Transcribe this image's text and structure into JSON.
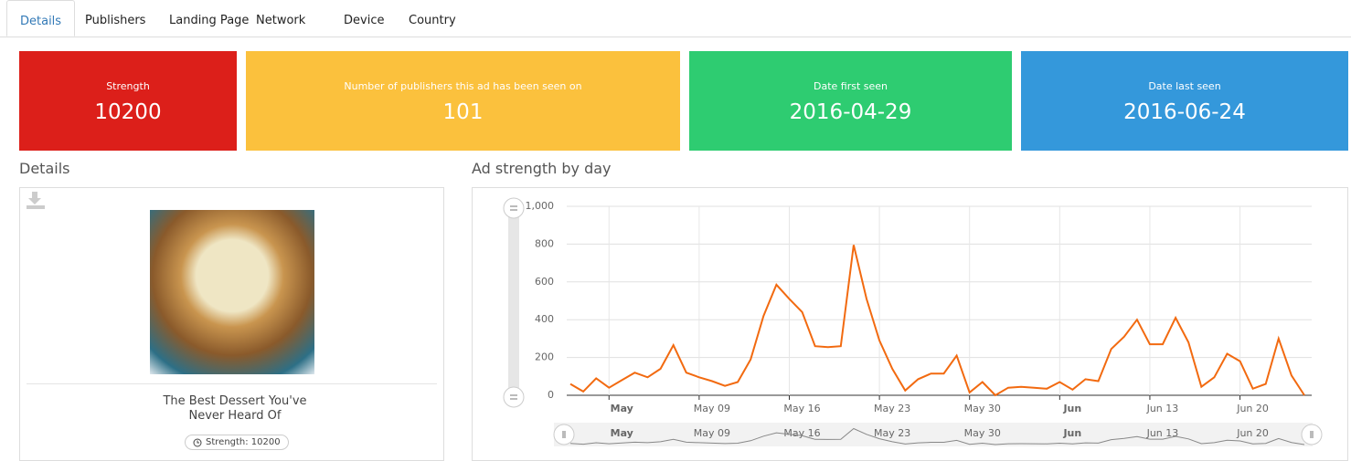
{
  "tabs": [
    "Details",
    "Publishers",
    "Landing Page",
    "Network",
    "Device",
    "Country"
  ],
  "cards": [
    {
      "label": "Strength",
      "value": 10200,
      "color": "#dc1f1a"
    },
    {
      "label": "Number of publishers this ad has been seen on",
      "value": 101,
      "color": "#fbc13d"
    },
    {
      "label": "Date first seen",
      "value": "2016-04-29",
      "color": "#2ecc71"
    },
    {
      "label": "Date last seen",
      "value": "2016-06-24",
      "color": "#3498db"
    }
  ],
  "details": {
    "heading": "Details",
    "ad_title": "The Best Dessert You've Never Heard Of",
    "badge": "Strength: 10200"
  },
  "chart_data": {
    "type": "line",
    "title": "Ad strength by day",
    "color": "#f26a10",
    "x": [
      "Apr 29",
      "Apr 30",
      "May 01",
      "May 02",
      "May 03",
      "May 04",
      "May 05",
      "May 06",
      "May 07",
      "May 08",
      "May 09",
      "May 10",
      "May 11",
      "May 12",
      "May 13",
      "May 14",
      "May 15",
      "May 16",
      "May 17",
      "May 18",
      "May 19",
      "May 20",
      "May 21",
      "May 22",
      "May 23",
      "May 24",
      "May 25",
      "May 26",
      "May 27",
      "May 28",
      "May 29",
      "May 30",
      "May 31",
      "Jun 01",
      "Jun 02",
      "Jun 03",
      "Jun 04",
      "Jun 05",
      "Jun 06",
      "Jun 07",
      "Jun 08",
      "Jun 09",
      "Jun 10",
      "Jun 11",
      "Jun 12",
      "Jun 13",
      "Jun 14",
      "Jun 15",
      "Jun 16",
      "Jun 17",
      "Jun 18",
      "Jun 19",
      "Jun 20",
      "Jun 21",
      "Jun 22",
      "Jun 23",
      "Jun 24",
      "Jun 25"
    ],
    "values": [
      60,
      20,
      90,
      40,
      80,
      120,
      95,
      140,
      265,
      120,
      95,
      75,
      50,
      70,
      190,
      420,
      585,
      510,
      440,
      260,
      255,
      260,
      795,
      510,
      290,
      140,
      25,
      85,
      115,
      115,
      210,
      15,
      70,
      0,
      40,
      45,
      40,
      35,
      70,
      30,
      85,
      75,
      245,
      310,
      400,
      270,
      270,
      410,
      280,
      45,
      95,
      220,
      180,
      35,
      60,
      300,
      105,
      0
    ],
    "ylim": [
      0,
      1000
    ],
    "yticks": [
      0,
      200,
      400,
      600,
      800,
      {
        "value": 1000,
        "label": "1,000"
      }
    ],
    "xticks": [
      {
        "value": "May 02",
        "label": "May"
      },
      "May 09",
      "May 16",
      "May 23",
      "May 30",
      {
        "value": "Jun 06",
        "label": "Jun"
      },
      "Jun 13",
      "Jun 20"
    ],
    "grid": true
  }
}
